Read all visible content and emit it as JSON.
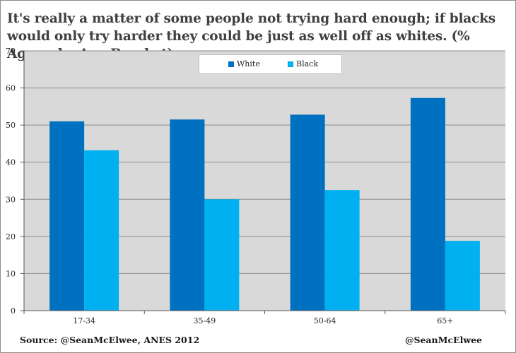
{
  "title": "It's really a matter of some people not trying hard enough; if blacks would only try harder they could be just as well off as whites. (% Agree, by Age Bracket)",
  "source": "Source: @SeanMcElwee,  ANES 2012",
  "credit": "@SeanMcElwee",
  "colors": {
    "white": "#0070c0",
    "black": "#00b0f0",
    "plot_bg": "#d9d9d9",
    "grid": "#8c8c8c"
  },
  "chart_data": {
    "type": "bar",
    "categories": [
      "17-34",
      "35-49",
      "50-64",
      "65+"
    ],
    "series": [
      {
        "name": "White",
        "values": [
          51,
          51.5,
          52.8,
          57.3
        ]
      },
      {
        "name": "Black",
        "values": [
          43.2,
          30,
          32.5,
          18.8
        ]
      }
    ],
    "ylim": [
      0,
      70
    ],
    "yticks": [
      "0",
      "10",
      "20",
      "30",
      "40",
      "50",
      "60",
      "70"
    ],
    "legend": "top-center",
    "grid": true
  }
}
